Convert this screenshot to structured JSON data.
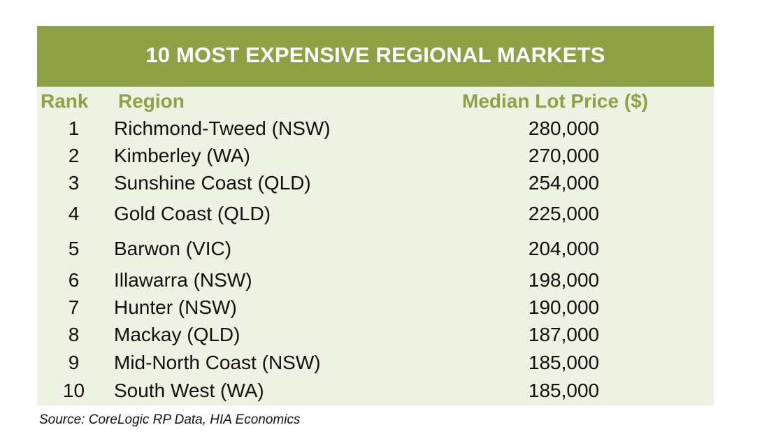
{
  "table": {
    "title": "10 MOST EXPENSIVE REGIONAL MARKETS",
    "headers": {
      "rank": "Rank",
      "region": "Region",
      "price": "Median Lot Price ($)"
    },
    "rows": [
      {
        "rank": "1",
        "region": "Richmond-Tweed (NSW)",
        "price": "280,000"
      },
      {
        "rank": "2",
        "region": "Kimberley (WA)",
        "price": "270,000"
      },
      {
        "rank": "3",
        "region": "Sunshine Coast (QLD)",
        "price": "254,000"
      },
      {
        "rank": "4",
        "region": "Gold Coast (QLD)",
        "price": "225,000"
      },
      {
        "rank": "5",
        "region": "Barwon (VIC)",
        "price": "204,000"
      },
      {
        "rank": "6",
        "region": "Illawarra (NSW)",
        "price": "198,000"
      },
      {
        "rank": "7",
        "region": "Hunter (NSW)",
        "price": "190,000"
      },
      {
        "rank": "8",
        "region": "Mackay (QLD)",
        "price": "187,000"
      },
      {
        "rank": "9",
        "region": "Mid-North Coast (NSW)",
        "price": "185,000"
      },
      {
        "rank": "10",
        "region": "South West (WA)",
        "price": "185,000"
      }
    ]
  },
  "source": "Source: CoreLogic RP Data, HIA Economics",
  "colors": {
    "title_bg": "#8ea145",
    "header_text": "#8ea145",
    "cell_bg": "#eef2e2"
  }
}
